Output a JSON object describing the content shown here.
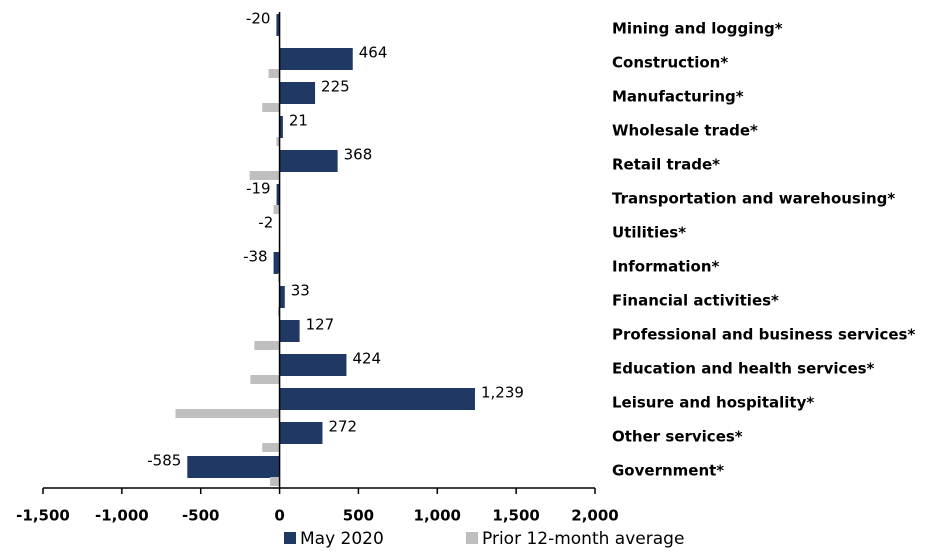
{
  "chart_data": {
    "type": "hbar",
    "categories": [
      "Mining and logging*",
      "Construction*",
      "Manufacturing*",
      "Wholesale trade*",
      "Retail trade*",
      "Transportation and warehousing*",
      "Utilities*",
      "Information*",
      "Financial activities*",
      "Professional and business services*",
      "Education and health services*",
      "Leisure and hospitality*",
      "Other services*",
      "Government*"
    ],
    "series": [
      {
        "name": "May 2020",
        "color": "#1f3864",
        "values": [
          -20,
          464,
          225,
          21,
          368,
          -19,
          -2,
          -38,
          33,
          127,
          424,
          1239,
          272,
          -585
        ],
        "value_labels": [
          "-20",
          "464",
          "225",
          "21",
          "368",
          "-19",
          "-2",
          "-38",
          "33",
          "127",
          "424",
          "1,239",
          "272",
          "-585"
        ]
      },
      {
        "name": "Prior 12-month average",
        "color": "#bfbfbf",
        "values": [
          -5,
          -70,
          -110,
          -20,
          -190,
          -38,
          -5,
          -10,
          -10,
          -160,
          -185,
          -660,
          -110,
          -60
        ]
      }
    ],
    "xlim": [
      -1500,
      2000
    ],
    "xticks": [
      {
        "value": -1500,
        "label": "-1,500"
      },
      {
        "value": -1000,
        "label": "-1,000"
      },
      -500,
      0,
      500,
      {
        "value": 1000,
        "label": "1,000"
      },
      {
        "value": 1500,
        "label": "1,500"
      },
      {
        "value": 2000,
        "label": "2,000"
      }
    ]
  }
}
